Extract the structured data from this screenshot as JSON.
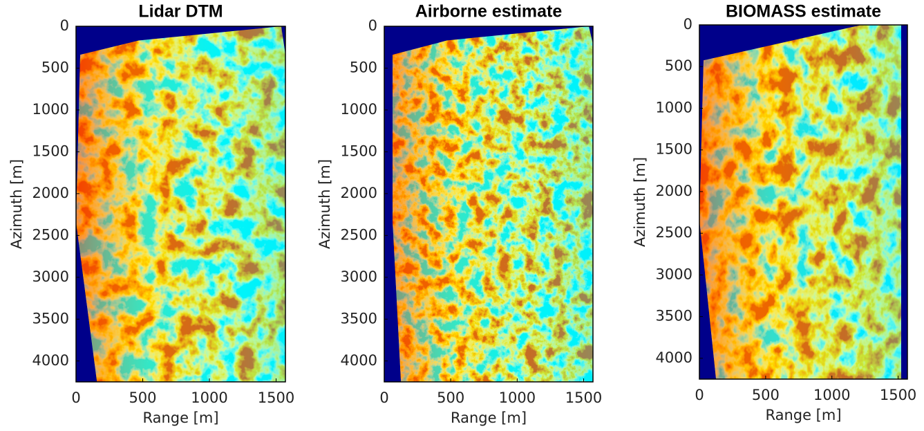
{
  "chart_data": [
    {
      "type": "heatmap",
      "title": "Lidar DTM",
      "xlabel": "Range [m]",
      "ylabel": "Azimuth [m]",
      "xlim": [
        0,
        1570
      ],
      "ylim": [
        4250,
        0
      ],
      "xticks": [
        0,
        500,
        1000,
        1500
      ],
      "yticks": [
        0,
        500,
        1000,
        1500,
        2000,
        2500,
        3000,
        3500,
        4000
      ]
    },
    {
      "type": "heatmap",
      "title": "Airborne estimate",
      "xlabel": "Range [m]",
      "ylabel": "Azimuth [m]",
      "xlim": [
        0,
        1570
      ],
      "ylim": [
        4250,
        0
      ],
      "xticks": [
        0,
        500,
        1000,
        1500
      ],
      "yticks": [
        0,
        500,
        1000,
        1500,
        2000,
        2500,
        3000,
        3500,
        4000
      ]
    },
    {
      "type": "heatmap",
      "title": "BIOMASS estimate",
      "xlabel": "Range [m]",
      "ylabel": "Azimuth [m]",
      "xlim": [
        0,
        1570
      ],
      "ylim": [
        4250,
        0
      ],
      "xticks": [
        0,
        500,
        1000,
        1500
      ],
      "yticks": [
        0,
        500,
        1000,
        1500,
        2000,
        2500,
        3000,
        3500,
        4000
      ]
    }
  ]
}
